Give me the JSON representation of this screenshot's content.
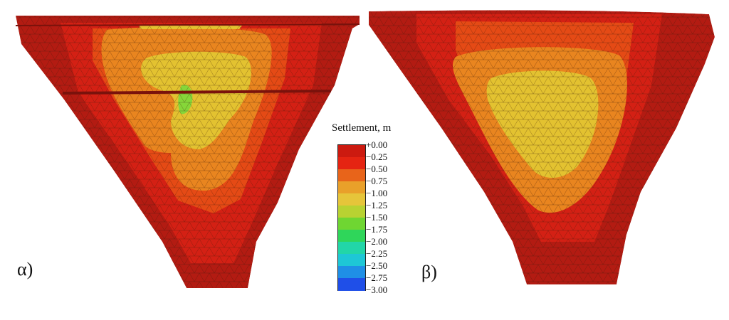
{
  "panels": [
    {
      "label": "α)"
    },
    {
      "label": "β)"
    }
  ],
  "legend": {
    "title": "Settlement, m",
    "unit": "m",
    "entries": [
      {
        "label": "+0.00",
        "color": "#cc1a10"
      },
      {
        "label": "−0.25",
        "color": "#e52412"
      },
      {
        "label": "−0.50",
        "color": "#e8641a"
      },
      {
        "label": "−0.75",
        "color": "#e9a02a"
      },
      {
        "label": "−1.00",
        "color": "#e6c53a"
      },
      {
        "label": "−1.25",
        "color": "#b8d232"
      },
      {
        "label": "−1.50",
        "color": "#6fd632"
      },
      {
        "label": "−1.75",
        "color": "#2fd65a"
      },
      {
        "label": "−2.00",
        "color": "#22d6a8"
      },
      {
        "label": "−2.25",
        "color": "#1ec7d6"
      },
      {
        "label": "−2.50",
        "color": "#1f8fe6"
      },
      {
        "label": "−2.75",
        "color": "#1f4fe8"
      },
      {
        "label": "−3.00",
        "color": "#1414d6"
      }
    ]
  },
  "colors": {
    "rim": "#b31b12",
    "outer": "#d42014",
    "mid": "#e54a15",
    "inner_orange": "#e9851f",
    "core_yellow": "#e3c230",
    "green_spot": "#86d639",
    "mesh": "#3a1a0a"
  }
}
